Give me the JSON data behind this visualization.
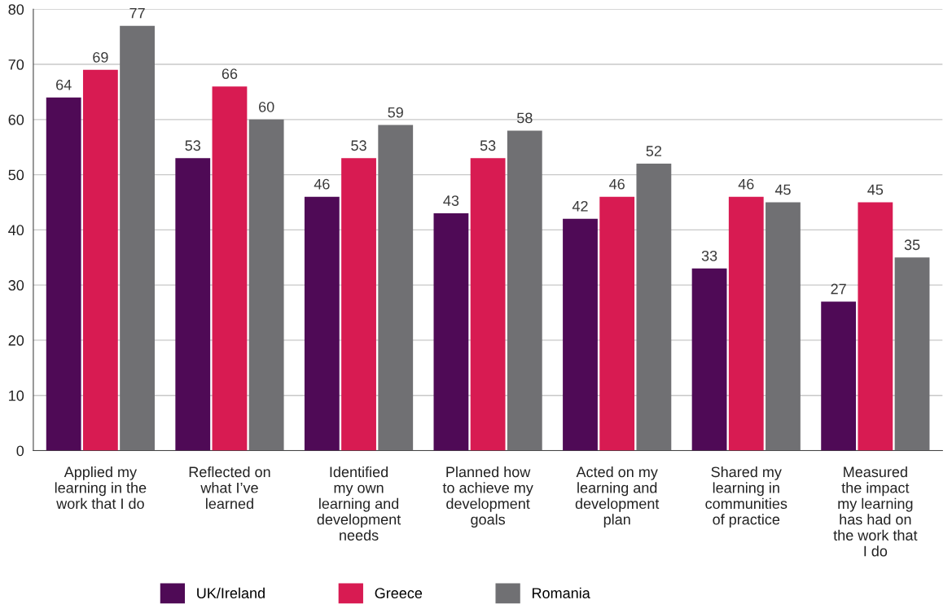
{
  "chart_data": {
    "type": "bar",
    "categories": [
      "Applied my\nlearning in the\nwork that I do",
      "Reflected on\nwhat I’ve\nlearned",
      "Identified\nmy own\nlearning and\ndevelopment\nneeds",
      "Planned how\nto achieve my\ndevelopment\ngoals",
      "Acted on my\nlearning and\ndevelopment\nplan",
      "Shared my\nlearning in\ncommunities\nof practice",
      "Measured\nthe impact\nmy learning\nhas had on\nthe work that\nI do"
    ],
    "series": [
      {
        "name": "UK/Ireland",
        "color": "#4f0a56",
        "values": [
          64,
          53,
          46,
          43,
          42,
          33,
          27
        ]
      },
      {
        "name": "Greece",
        "color": "#d81b52",
        "values": [
          69,
          66,
          53,
          53,
          46,
          46,
          45
        ]
      },
      {
        "name": "Romania",
        "color": "#707073",
        "values": [
          77,
          60,
          59,
          58,
          52,
          45,
          35
        ]
      }
    ],
    "ylim": [
      0,
      80
    ],
    "yticks": [
      0,
      10,
      20,
      30,
      40,
      50,
      60,
      70,
      80
    ],
    "grid": "y",
    "legend": "bottom",
    "data_labels": true
  }
}
